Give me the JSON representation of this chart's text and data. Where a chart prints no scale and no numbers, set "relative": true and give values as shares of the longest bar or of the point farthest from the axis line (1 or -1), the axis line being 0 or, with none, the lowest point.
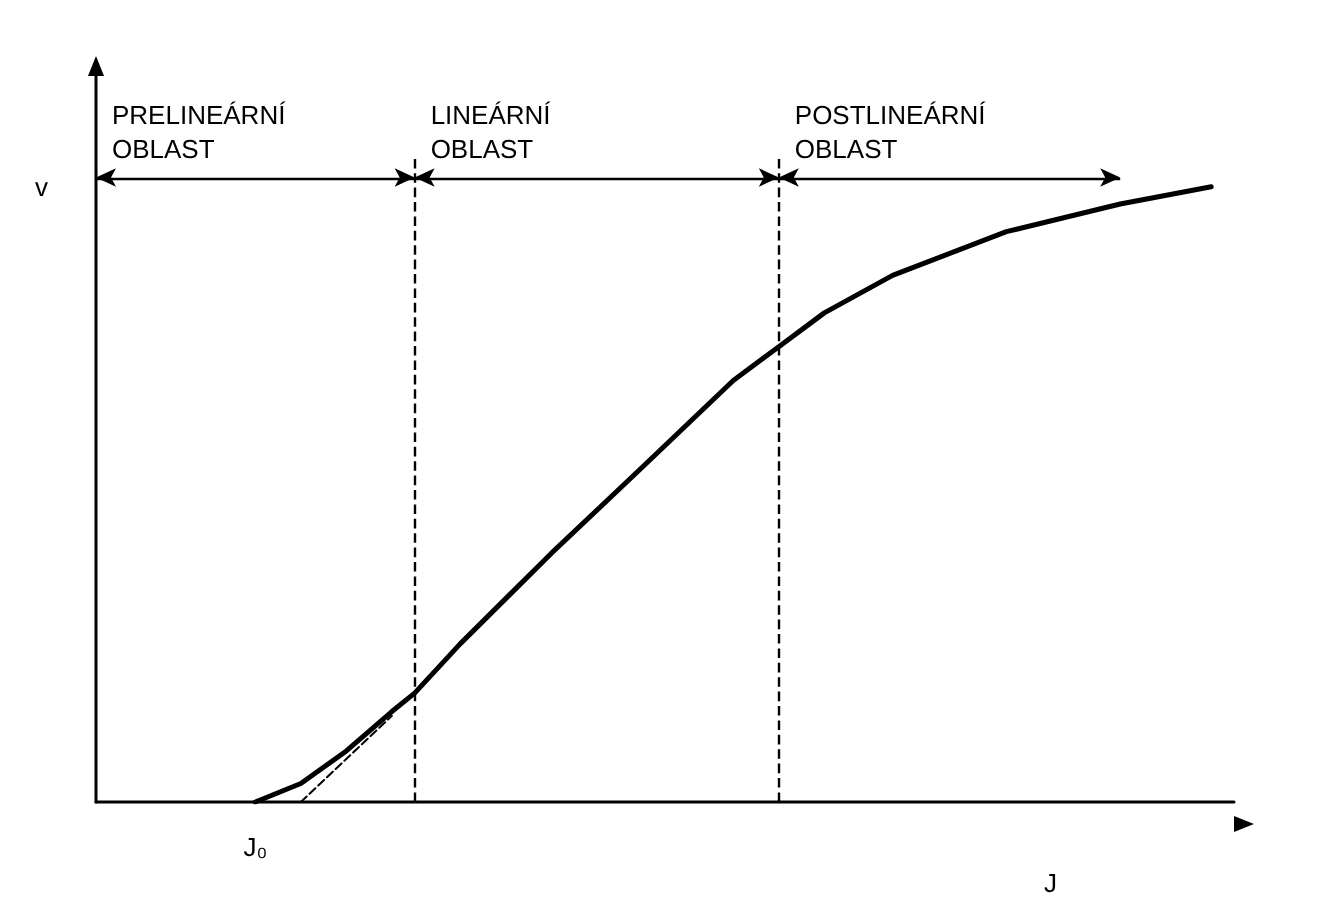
{
  "chart_data": {
    "type": "line",
    "relative": true,
    "xlabel": "J",
    "ylabel": "v",
    "grid": false,
    "marker": "none",
    "line_style": "solid",
    "annotations": [
      "J₀",
      "PRELINEÁRNÍ OBLAST",
      "LINEÁRNÍ OBLAST",
      "POSTLINEÁRNÍ OBLAST"
    ],
    "categories": [
      null,
      null,
      null,
      null,
      null,
      null,
      null,
      null,
      null,
      null,
      null,
      null,
      null,
      null,
      null,
      null,
      null,
      null,
      null,
      null,
      null,
      null,
      null,
      null,
      null,
      null,
      null,
      null,
      null,
      null,
      null,
      null,
      null,
      null,
      null,
      null,
      null,
      null,
      null,
      null,
      null,
      null,
      null,
      null,
      null,
      null,
      null,
      null,
      null,
      null,
      null
    ],
    "series": [
      {
        "color": "#000000",
        "values": [
          null,
          null,
          null,
          null,
          null,
          null,
          null,
          0,
          null,
          0.03,
          null,
          0.083,
          null,
          0.147,
          0.177,
          null,
          0.257,
          null,
          null,
          null,
          0.404,
          null,
          null,
          null,
          0.544,
          null,
          null,
          null,
          0.685,
          null,
          0.74,
          null,
          0.795,
          null,
          null,
          0.856,
          null,
          null,
          null,
          null,
          0.927,
          null,
          null,
          null,
          null,
          0.972,
          null,
          null,
          null,
          1,
          null
        ]
      },
      {
        "color": "#000000",
        "line_style": "dashed",
        "values": [
          null,
          null,
          null,
          null,
          null,
          null,
          null,
          null,
          null,
          0,
          null,
          null,
          null,
          0.14,
          null,
          null,
          null,
          null,
          null,
          null,
          null,
          null,
          null,
          null,
          null,
          null,
          null,
          null,
          null,
          null,
          null,
          null,
          null,
          null,
          null,
          null,
          null,
          null,
          null,
          null,
          null,
          null,
          null,
          null,
          null,
          null,
          null,
          null,
          null,
          null,
          null
        ]
      }
    ]
  }
}
